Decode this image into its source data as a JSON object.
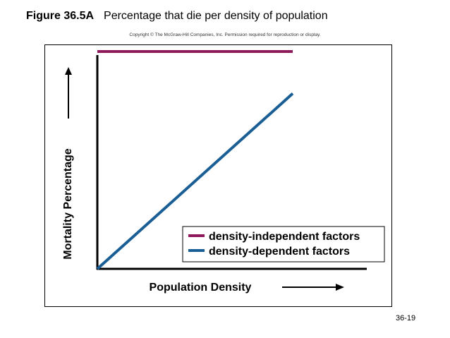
{
  "figure": {
    "number": "Figure 36.5A",
    "title": "Percentage that die per density of population",
    "copyright": "Copyright © The McGraw-Hill Companies, Inc. Permission required for reproduction or display."
  },
  "slide_number": "36-19",
  "chart_data": {
    "type": "line",
    "xlabel": "Population Density",
    "ylabel": "Mortality Percentage",
    "x": [
      0,
      1
    ],
    "xlim": [
      0,
      1
    ],
    "ylim": [
      0,
      1
    ],
    "grid": false,
    "legend_position": "bottom-right",
    "series": [
      {
        "name": "density-independent factors",
        "color": "#8e1a5c",
        "values": [
          0.88,
          0.88
        ]
      },
      {
        "name": "density-dependent factors",
        "color": "#1a5e96",
        "values": [
          0.0,
          0.71
        ]
      }
    ]
  }
}
